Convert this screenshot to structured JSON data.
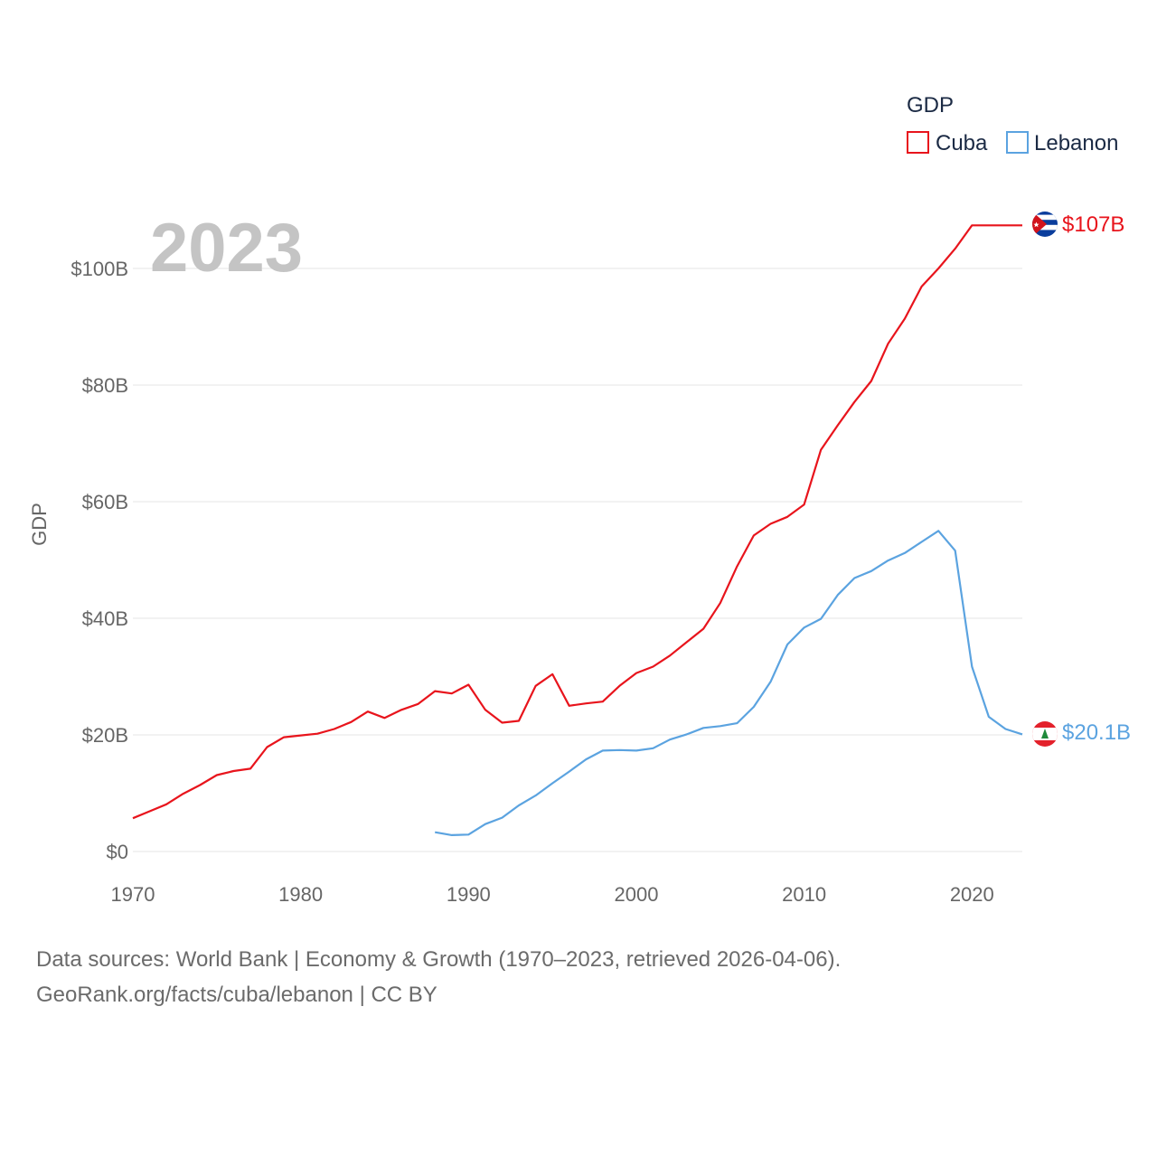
{
  "chart_data": {
    "type": "line",
    "year_label": "2023",
    "ylabel": "GDP",
    "legend_title": "GDP",
    "xlim": [
      1970,
      2023
    ],
    "ylim": [
      0,
      108
    ],
    "x_ticks": [
      1970,
      1980,
      1990,
      2000,
      2010,
      2020
    ],
    "x_tick_labels": [
      "1970",
      "1980",
      "1990",
      "2000",
      "2010",
      "2020"
    ],
    "y_ticks": [
      0,
      20,
      40,
      60,
      80,
      100
    ],
    "y_tick_labels": [
      "$0",
      "$20B",
      "$40B",
      "$60B",
      "$80B",
      "$100B"
    ],
    "series": [
      {
        "name": "Cuba",
        "color": "#e8141c",
        "end_label": "$107B",
        "points": [
          [
            1970,
            5.7
          ],
          [
            1971,
            6.9
          ],
          [
            1972,
            8.1
          ],
          [
            1973,
            9.9
          ],
          [
            1974,
            11.4
          ],
          [
            1975,
            13.1
          ],
          [
            1976,
            13.8
          ],
          [
            1977,
            14.2
          ],
          [
            1978,
            17.9
          ],
          [
            1979,
            19.6
          ],
          [
            1980,
            19.9
          ],
          [
            1981,
            20.2
          ],
          [
            1982,
            21.0
          ],
          [
            1983,
            22.2
          ],
          [
            1984,
            24.0
          ],
          [
            1985,
            22.9
          ],
          [
            1986,
            24.3
          ],
          [
            1987,
            25.3
          ],
          [
            1988,
            27.5
          ],
          [
            1989,
            27.1
          ],
          [
            1990,
            28.6
          ],
          [
            1991,
            24.3
          ],
          [
            1992,
            22.1
          ],
          [
            1993,
            22.4
          ],
          [
            1994,
            28.4
          ],
          [
            1995,
            30.4
          ],
          [
            1996,
            25.0
          ],
          [
            1997,
            25.4
          ],
          [
            1998,
            25.7
          ],
          [
            1999,
            28.4
          ],
          [
            2000,
            30.6
          ],
          [
            2001,
            31.7
          ],
          [
            2002,
            33.6
          ],
          [
            2003,
            35.9
          ],
          [
            2004,
            38.2
          ],
          [
            2005,
            42.6
          ],
          [
            2006,
            48.9
          ],
          [
            2007,
            54.2
          ],
          [
            2008,
            56.2
          ],
          [
            2009,
            57.4
          ],
          [
            2010,
            59.5
          ],
          [
            2011,
            68.9
          ],
          [
            2012,
            73.1
          ],
          [
            2013,
            77.1
          ],
          [
            2014,
            80.7
          ],
          [
            2015,
            87.1
          ],
          [
            2016,
            91.4
          ],
          [
            2017,
            96.9
          ],
          [
            2018,
            100.0
          ],
          [
            2019,
            103.4
          ],
          [
            2020,
            107.4
          ],
          [
            2021,
            107.4
          ],
          [
            2022,
            107.4
          ],
          [
            2023,
            107.4
          ]
        ]
      },
      {
        "name": "Lebanon",
        "color": "#5ba3e0",
        "end_label": "$20.1B",
        "points": [
          [
            1988,
            3.3
          ],
          [
            1989,
            2.8
          ],
          [
            1990,
            2.9
          ],
          [
            1991,
            4.7
          ],
          [
            1992,
            5.8
          ],
          [
            1993,
            7.9
          ],
          [
            1994,
            9.6
          ],
          [
            1995,
            11.7
          ],
          [
            1996,
            13.7
          ],
          [
            1997,
            15.8
          ],
          [
            1998,
            17.3
          ],
          [
            1999,
            17.4
          ],
          [
            2000,
            17.3
          ],
          [
            2001,
            17.7
          ],
          [
            2002,
            19.2
          ],
          [
            2003,
            20.1
          ],
          [
            2004,
            21.2
          ],
          [
            2005,
            21.5
          ],
          [
            2006,
            22.0
          ],
          [
            2007,
            24.8
          ],
          [
            2008,
            29.1
          ],
          [
            2009,
            35.5
          ],
          [
            2010,
            38.4
          ],
          [
            2011,
            39.9
          ],
          [
            2012,
            44.0
          ],
          [
            2013,
            46.9
          ],
          [
            2014,
            48.1
          ],
          [
            2015,
            49.9
          ],
          [
            2016,
            51.2
          ],
          [
            2017,
            53.1
          ],
          [
            2018,
            55.0
          ],
          [
            2019,
            51.6
          ],
          [
            2020,
            31.7
          ],
          [
            2021,
            23.1
          ],
          [
            2022,
            21.0
          ],
          [
            2023,
            20.1
          ]
        ]
      }
    ]
  },
  "footer": {
    "line1": "Data sources: World Bank | Economy & Growth (1970–2023, retrieved 2026-04-06).",
    "line2": "GeoRank.org/facts/cuba/lebanon | CC BY"
  }
}
